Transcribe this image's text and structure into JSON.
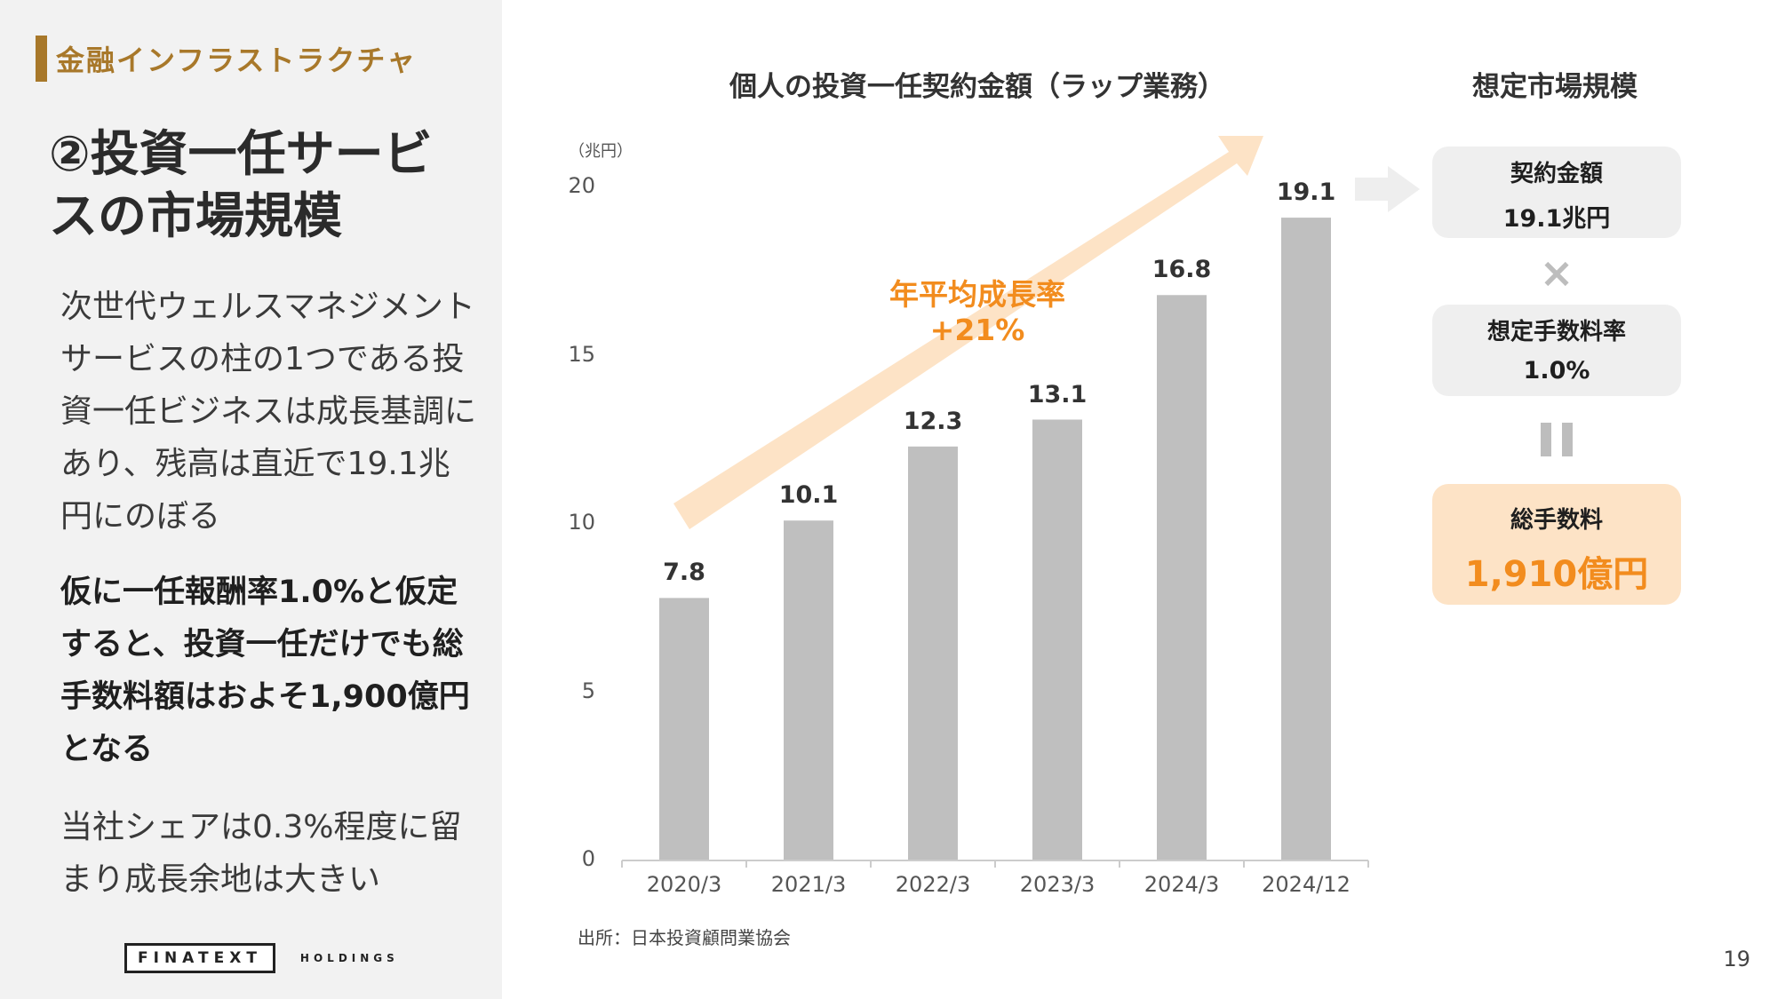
{
  "section_label": "金融インフラストラクチャ",
  "title": "②投資一任サービスの市場規模",
  "para1": "次世代ウェルスマネジメントサービスの柱の1つである投資一任ビジネスは成長基調にあり、残高は直近で19.1兆円にのぼる",
  "para2": "仮に一任報酬率1.0%と仮定すると、投資一任だけでも総手数料額はおよそ1,900億円となる",
  "para3": "当社シェアは0.3%程度に留まり成長余地は大きい",
  "logo": {
    "main": "FINATEXT",
    "sub": "HOLDINGS"
  },
  "page_number": "19",
  "chart_data": {
    "type": "bar",
    "title": "個人の投資一任契約金額（ラップ業務）",
    "unit_label": "（兆円）",
    "categories": [
      "2020/3",
      "2021/3",
      "2022/3",
      "2023/3",
      "2024/3",
      "2024/12"
    ],
    "values": [
      7.8,
      10.1,
      12.3,
      13.1,
      16.8,
      19.1
    ],
    "data_labels": [
      "7.8",
      "10.1",
      "12.3",
      "13.1",
      "16.8",
      "19.1"
    ],
    "ylim": [
      0,
      20
    ],
    "yticks": [
      "0",
      "5",
      "10",
      "15",
      "20"
    ],
    "grid": false,
    "bar_color": "#bfbfbf",
    "annotation": {
      "line1": "年平均成長率",
      "line2": "+21%",
      "color": "#f28c1e"
    },
    "source": "出所：日本投資顧問業協会"
  },
  "market_size": {
    "title": "想定市場規模",
    "contract": {
      "label": "契約金額",
      "value": "19.1兆円"
    },
    "fee_rate": {
      "label": "想定手数料率",
      "value": "1.0%"
    },
    "total_fee": {
      "label": "総手数料",
      "value": "1,910億円"
    },
    "times_symbol": "×"
  },
  "colors": {
    "accent_gold": "#a8782a",
    "accent_orange": "#f28c1e",
    "arrow_fill": "#fde3c6",
    "bar": "#bfbfbf"
  }
}
